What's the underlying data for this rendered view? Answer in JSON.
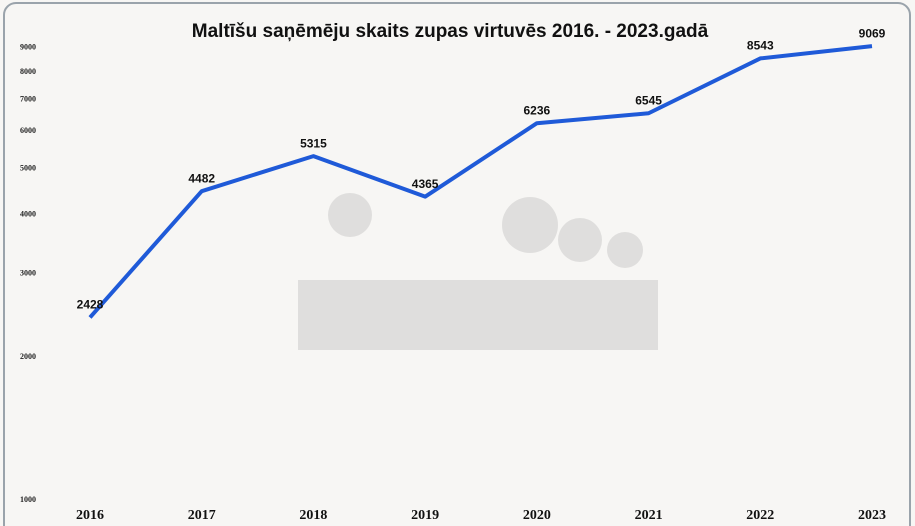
{
  "chart_data": {
    "type": "line",
    "title": "Maltīšu saņēmēju skaits zupas virtuvēs 2016. - 2023.gadā",
    "categories": [
      "2016",
      "2017",
      "2018",
      "2019",
      "2020",
      "2021",
      "2022",
      "2023"
    ],
    "values": [
      2428,
      4482,
      5315,
      4365,
      6236,
      6545,
      8543,
      9069
    ],
    "color": "#1f5ad8",
    "ylim": [
      1000,
      10000
    ],
    "yscale": "log",
    "yticks": [
      1000,
      2000,
      3000,
      4000,
      5000,
      6000,
      7000,
      8000,
      9000
    ],
    "grid": false
  }
}
